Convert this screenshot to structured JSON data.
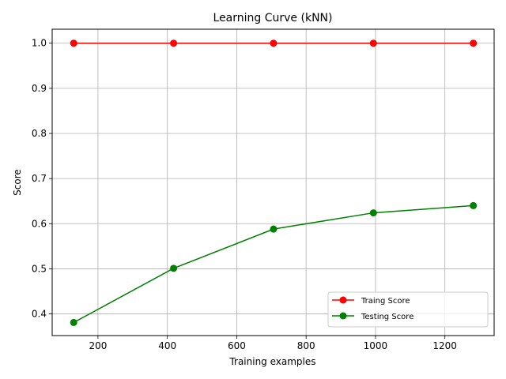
{
  "chart_data": {
    "type": "line",
    "title": "Learning Curve (kNN)",
    "xlabel": "Training examples",
    "ylabel": "Score",
    "xlim": [
      68,
      1342
    ],
    "ylim": [
      0.352,
      1.031
    ],
    "xticks": [
      200,
      400,
      600,
      800,
      1000,
      1200
    ],
    "yticks": [
      0.4,
      0.5,
      0.6,
      0.7,
      0.8,
      0.9,
      1.0
    ],
    "grid": true,
    "legend_position": "lower-right",
    "x": [
      130,
      418,
      706,
      994,
      1282
    ],
    "series": [
      {
        "name": "Traing Score",
        "color": "#ff0000",
        "values": [
          1.0,
          1.0,
          1.0,
          1.0,
          1.0
        ]
      },
      {
        "name": "Testing Score",
        "color": "#008000",
        "values": [
          0.381,
          0.501,
          0.588,
          0.624,
          0.64
        ]
      }
    ]
  }
}
